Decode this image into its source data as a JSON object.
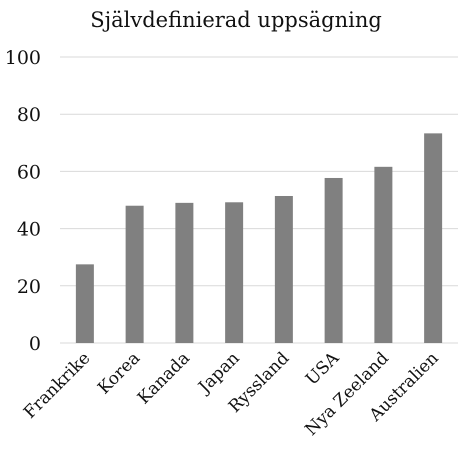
{
  "chart_data": {
    "type": "bar",
    "title": "Självdefinierad uppsägning",
    "xlabel": "",
    "ylabel": "",
    "categories": [
      "Frankrike",
      "Korea",
      "Kanada",
      "Japan",
      "Ryssland",
      "USA",
      "Nya Zeeland",
      "Australien"
    ],
    "values": [
      27.5,
      48,
      49,
      49.2,
      51.4,
      57.7,
      61.6,
      73.3
    ],
    "ylim": [
      0,
      100
    ],
    "yticks": [
      "0",
      "20",
      "40",
      "60",
      "80",
      "100"
    ],
    "grid": true,
    "legend": "none",
    "bar_color": "#808080"
  }
}
